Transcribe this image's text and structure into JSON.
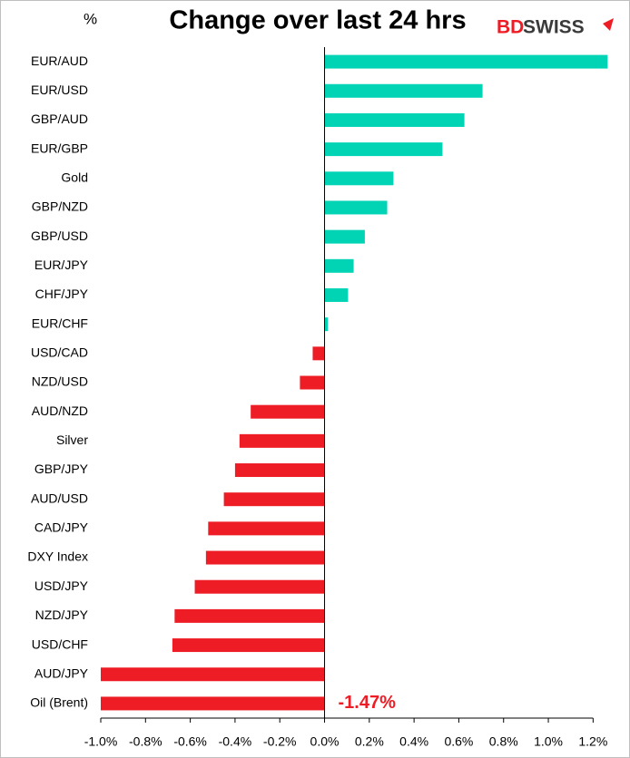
{
  "chart_data": {
    "type": "barh",
    "title": "Change over last 24 hrs",
    "unit_label": "%",
    "logo": {
      "left": "BD",
      "right": "SWISS"
    },
    "categories": [
      "EUR/AUD",
      "EUR/USD",
      "GBP/AUD",
      "EUR/GBP",
      "Gold",
      "GBP/NZD",
      "GBP/USD",
      "EUR/JPY",
      "CHF/JPY",
      "EUR/CHF",
      "USD/CAD",
      "NZD/USD",
      "AUD/NZD",
      "Silver",
      "GBP/JPY",
      "AUD/USD",
      "CAD/JPY",
      "DXY Index",
      "USD/JPY",
      "NZD/JPY",
      "USD/CHF",
      "AUD/JPY",
      "Oil (Brent)"
    ],
    "values": [
      1.265,
      0.706,
      0.625,
      0.527,
      0.308,
      0.28,
      0.18,
      0.13,
      0.105,
      0.015,
      -0.053,
      -0.11,
      -0.33,
      -0.38,
      -0.4,
      -0.45,
      -0.52,
      -0.53,
      -0.58,
      -0.67,
      -0.68,
      -1.0,
      -1.47
    ],
    "value_labels": [
      null,
      null,
      null,
      null,
      null,
      null,
      null,
      null,
      null,
      null,
      null,
      null,
      null,
      null,
      null,
      null,
      null,
      null,
      null,
      null,
      null,
      null,
      "-1.47%"
    ],
    "positive_color": "#00d4b4",
    "negative_color": "#ee1c25",
    "xlim": [
      -1.0,
      1.27
    ],
    "xticks": [
      {
        "value": -1.0,
        "label": "-1.0%"
      },
      {
        "value": -0.8,
        "label": "-0.8%"
      },
      {
        "value": -0.6,
        "label": "-0.6%"
      },
      {
        "value": -0.4,
        "label": "-0.4%"
      },
      {
        "value": -0.2,
        "label": "-0.2%"
      },
      {
        "value": 0,
        "label": "0.0%"
      },
      {
        "value": 0.2,
        "label": "0.2%"
      },
      {
        "value": 0.4,
        "label": "0.4%"
      },
      {
        "value": 0.6,
        "label": "0.6%"
      },
      {
        "value": 0.8,
        "label": "0.8%"
      },
      {
        "value": 1.0,
        "label": "1.0%"
      },
      {
        "value": 1.2,
        "label": "1.2%"
      }
    ]
  }
}
